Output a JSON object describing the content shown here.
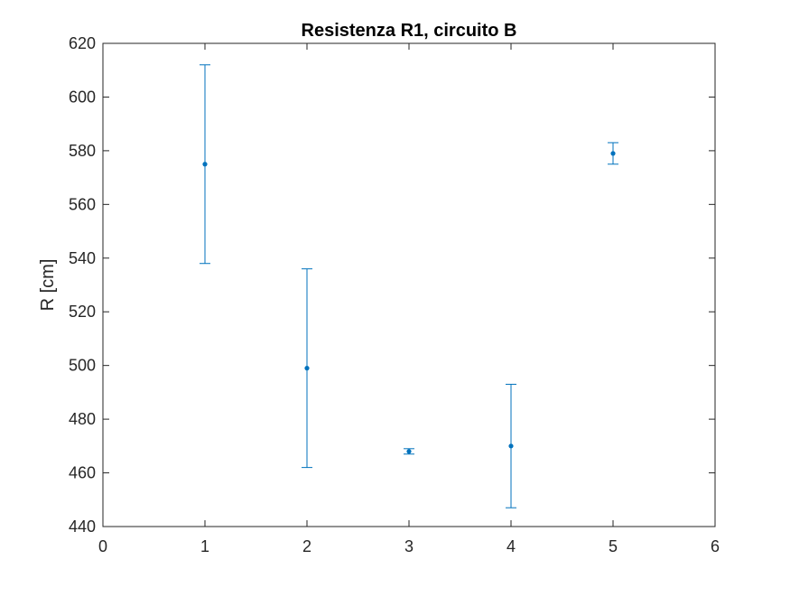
{
  "chart_data": {
    "type": "scatter",
    "title": "Resistenza R1, circuito B",
    "xlabel": "",
    "ylabel": "R [cm]",
    "xlim": [
      0,
      6
    ],
    "ylim": [
      440,
      620
    ],
    "x_ticks": [
      0,
      1,
      2,
      3,
      4,
      5,
      6
    ],
    "y_ticks": [
      440,
      460,
      480,
      500,
      520,
      540,
      560,
      580,
      600,
      620
    ],
    "grid": false,
    "legend": "none",
    "series": [
      {
        "color": "#0072BD",
        "marker": "point",
        "error_bars": true,
        "points": [
          {
            "x": 1,
            "y": 575,
            "err_low": 538,
            "err_high": 612
          },
          {
            "x": 2,
            "y": 499,
            "err_low": 462,
            "err_high": 536
          },
          {
            "x": 3,
            "y": 468,
            "err_low": 467,
            "err_high": 469
          },
          {
            "x": 4,
            "y": 470,
            "err_low": 447,
            "err_high": 493
          },
          {
            "x": 5,
            "y": 579,
            "err_low": 575,
            "err_high": 583
          }
        ]
      }
    ]
  }
}
